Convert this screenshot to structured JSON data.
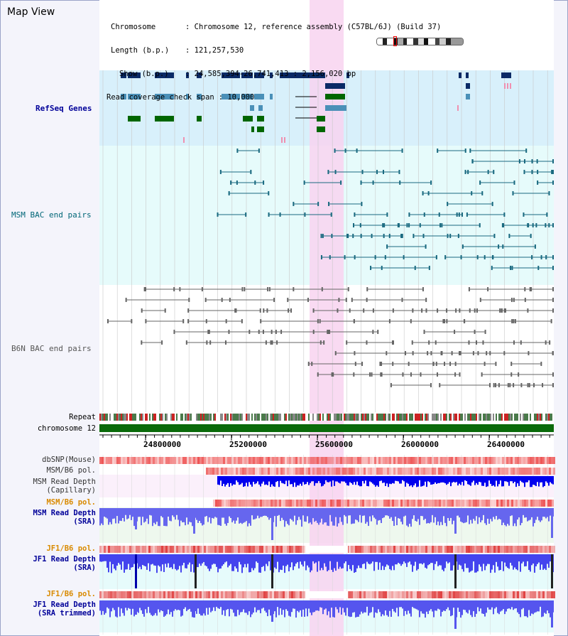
{
  "view": {
    "title": "Map View"
  },
  "info": {
    "chromosome_key": "Chromosome",
    "chromosome_val": ": Chromosome 12, reference assembly (C57BL/6J) (Build 37)",
    "length_key": "Length (b.p.)",
    "length_val": ": 121,257,530",
    "show_key": "Show (b.p.)",
    "show_val": ": 24,585,394-26,741,413 : 2,156,020 bp",
    "coverage_key": "Read coverage check span",
    "coverage_val": ": 10,000"
  },
  "tracks": {
    "refseq": "RefSeq Genes",
    "msm_bac": "MSM BAC end pairs",
    "b6n_bac": "B6N BAC end pairs",
    "repeat": "Repeat",
    "chromosome": "chromosome 12",
    "dbsnp": "dbSNP(Mouse)",
    "msm_b6_pol1": "MSM/B6 pol.",
    "msm_rd_cap_1": "MSM Read Depth",
    "msm_rd_cap_2": "(Capillary)",
    "msm_b6_pol2": "MSM/B6 pol.",
    "msm_rd_sra_1": "MSM Read Depth",
    "msm_rd_sra_2": "(SRA)",
    "jf1_b6_pol1": "JF1/B6 pol.",
    "jf1_rd_sra_1": "JF1 Read Depth",
    "jf1_rd_sra_2": "(SRA)",
    "jf1_b6_pol2": "JF1/B6 pol.",
    "jf1_rd_trim_1": "JF1 Read Depth",
    "jf1_rd_trim_2": "(SRA trimmed)"
  },
  "axis": {
    "ticks": [
      "24800000",
      "25200000",
      "25600000",
      "26000000",
      "26400000"
    ]
  },
  "colors": {
    "refseq_dark": "#0a2a66",
    "refseq_light": "#4a90b8",
    "refseq_green": "#006600",
    "refseq_bg": "#d8f0fb",
    "msm_bg": "#e6fbfb",
    "msm_line": "#1a6a80",
    "b6n_line": "#666666",
    "highlight": "#f8d4f0",
    "read_depth": "#0000ee"
  }
}
